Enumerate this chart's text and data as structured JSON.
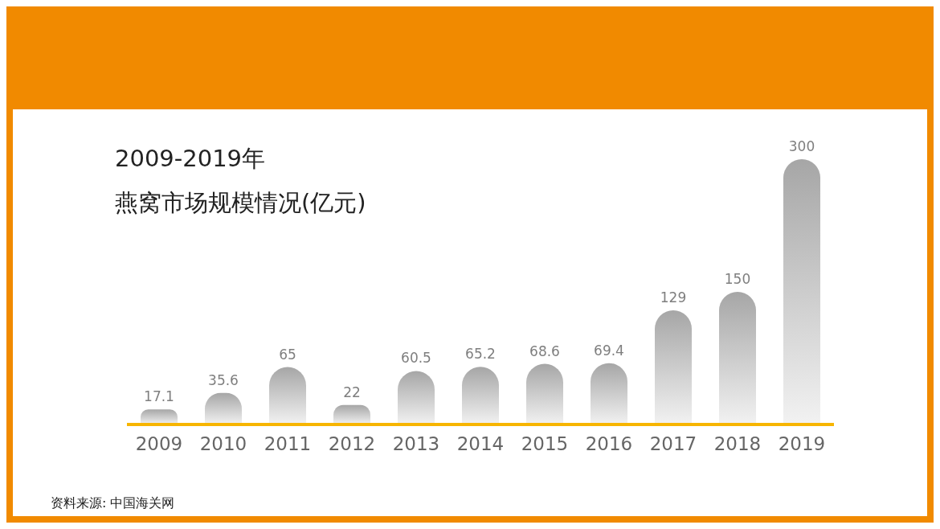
{
  "chart_data": {
    "type": "bar",
    "title": "2009-2019年",
    "subtitle": "燕窝市场规模情况(亿元)",
    "categories": [
      "2009",
      "2010",
      "2011",
      "2012",
      "2013",
      "2014",
      "2015",
      "2016",
      "2017",
      "2018",
      "2019"
    ],
    "values": [
      17.1,
      35.6,
      65,
      22,
      60.5,
      65.2,
      68.6,
      69.4,
      129,
      150,
      300
    ],
    "color": "#a6a6a6",
    "data_labels": true,
    "annotations": [
      "资料来源: 中国海关网"
    ]
  }
}
